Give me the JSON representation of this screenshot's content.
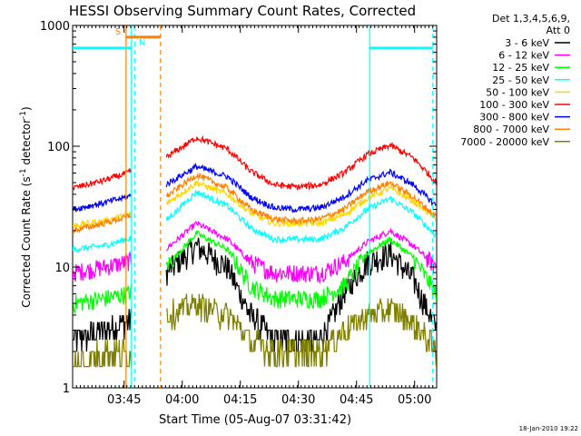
{
  "chart_data": {
    "type": "line",
    "title": "HESSI Observing Summary Count Rates, Corrected",
    "xlabel": "Start Time (05-Aug-07 03:31:42)",
    "ylabel_main": "Corrected Count Rate (s",
    "ylabel_sup1": "-1",
    "ylabel_mid": " detector",
    "ylabel_sup2": "-1",
    "ylabel_end": ")",
    "yscale": "log",
    "ylim": [
      1,
      1000
    ],
    "xlim_minutes": [
      0,
      94
    ],
    "x_units": "minutes since 03:31:42",
    "grid": false,
    "legend_title_1": "Det 1,3,4,5,6,9,",
    "legend_title_2": "Att 0",
    "legend_placement": "right, outside plot",
    "footer": "18-Jan-2010 19:22",
    "y_ticks": [
      {
        "v": 1,
        "label": "1"
      },
      {
        "v": 10,
        "label": "10"
      },
      {
        "v": 100,
        "label": "100"
      },
      {
        "v": 1000,
        "label": "1000"
      }
    ],
    "x_ticks": [
      {
        "v": 13.3,
        "label": "03:45"
      },
      {
        "v": 28.3,
        "label": "04:00"
      },
      {
        "v": 43.3,
        "label": "04:15"
      },
      {
        "v": 58.3,
        "label": "04:30"
      },
      {
        "v": 73.3,
        "label": "04:45"
      },
      {
        "v": 88.3,
        "label": "05:00"
      }
    ],
    "gap_minutes": [
      15.2,
      24.2
    ],
    "series": [
      {
        "name": "3 - 6 keV",
        "color": "#000000",
        "x": [
          0,
          8,
          14,
          24,
          32,
          40,
          46,
          52,
          58,
          64,
          70,
          76,
          82,
          88,
          94
        ],
        "values": [
          2.5,
          3,
          3.5,
          9,
          15,
          10,
          4,
          2.5,
          2.5,
          2.5,
          6,
          11,
          13,
          8,
          3
        ]
      },
      {
        "name": "6 - 12 keV",
        "color": "#ff00ff",
        "x": [
          0,
          8,
          14,
          24,
          32,
          40,
          46,
          52,
          58,
          64,
          70,
          76,
          82,
          88,
          94
        ],
        "values": [
          9,
          10,
          11,
          14,
          23,
          17,
          11,
          9,
          9,
          9,
          11,
          16,
          20,
          15,
          10
        ]
      },
      {
        "name": "12 - 25 keV",
        "color": "#00ff00",
        "x": [
          0,
          8,
          14,
          24,
          32,
          40,
          46,
          52,
          58,
          64,
          70,
          76,
          82,
          88,
          94
        ],
        "values": [
          5,
          5.5,
          6,
          10,
          19,
          14,
          7,
          5.5,
          5.5,
          5.5,
          7,
          13,
          17,
          12,
          6
        ]
      },
      {
        "name": "25 - 50 keV",
        "color": "#00ffff",
        "x": [
          0,
          8,
          14,
          24,
          32,
          40,
          46,
          52,
          58,
          64,
          70,
          76,
          82,
          88,
          94
        ],
        "values": [
          14,
          15,
          17,
          24,
          42,
          32,
          21,
          17,
          17,
          17,
          21,
          30,
          37,
          28,
          18
        ]
      },
      {
        "name": "50 - 100 keV",
        "color": "#ffd700",
        "x": [
          0,
          8,
          14,
          24,
          32,
          40,
          46,
          52,
          58,
          64,
          70,
          76,
          82,
          88,
          94
        ],
        "values": [
          22,
          24,
          27,
          33,
          50,
          40,
          28,
          23,
          23,
          23,
          27,
          37,
          45,
          35,
          25
        ]
      },
      {
        "name": "100 - 300 keV",
        "color": "#ff0000",
        "x": [
          0,
          8,
          14,
          24,
          32,
          40,
          46,
          52,
          58,
          64,
          70,
          76,
          82,
          88,
          94
        ],
        "values": [
          45,
          52,
          60,
          80,
          118,
          95,
          62,
          48,
          46,
          48,
          60,
          85,
          102,
          80,
          50
        ]
      },
      {
        "name": "300 - 800 keV",
        "color": "#0000ff",
        "x": [
          0,
          8,
          14,
          24,
          32,
          40,
          46,
          52,
          58,
          64,
          70,
          76,
          82,
          88,
          94
        ],
        "values": [
          30,
          34,
          38,
          48,
          68,
          56,
          38,
          31,
          30,
          31,
          38,
          52,
          61,
          48,
          32
        ]
      },
      {
        "name": "800 - 7000 keV",
        "color": "#ff8000",
        "x": [
          0,
          8,
          14,
          24,
          32,
          40,
          46,
          52,
          58,
          64,
          70,
          76,
          82,
          88,
          94
        ],
        "values": [
          20,
          23,
          26,
          38,
          58,
          45,
          30,
          25,
          24,
          25,
          30,
          42,
          50,
          38,
          26
        ]
      },
      {
        "name": "7000 - 20000 keV",
        "color": "#808000",
        "x": [
          0,
          8,
          14,
          24,
          32,
          40,
          46,
          52,
          58,
          64,
          70,
          76,
          82,
          88,
          94
        ],
        "values": [
          1.5,
          2,
          2,
          4,
          5,
          4,
          2.5,
          2,
          2,
          2,
          3,
          4,
          4.5,
          3.5,
          2
        ]
      }
    ],
    "annotations": [
      {
        "label": "S",
        "color": "#ff8000",
        "x_start": 13.8,
        "x_end": 22.7,
        "level": 800
      },
      {
        "label": "N",
        "color": "#00ffff",
        "x_start": 15.2,
        "x_end": 15.2,
        "level": 650
      }
    ],
    "flags": [
      {
        "color": "#00ffff",
        "x_start": 0,
        "x_end": 15.2,
        "level": 650
      },
      {
        "color": "#00ffff",
        "x_start": 76.7,
        "x_end": 93,
        "level": 650
      }
    ],
    "vlines": [
      {
        "x": 13.8,
        "color": "#ff8000",
        "dash": false
      },
      {
        "x": 15.2,
        "color": "#00ffff",
        "dash": false
      },
      {
        "x": 16.0,
        "color": "#00ffff",
        "dash": true
      },
      {
        "x": 22.7,
        "color": "#ff8000",
        "dash": true
      },
      {
        "x": 76.7,
        "color": "#00ffff",
        "dash": false
      },
      {
        "x": 93.0,
        "color": "#00ffff",
        "dash": true
      }
    ]
  }
}
